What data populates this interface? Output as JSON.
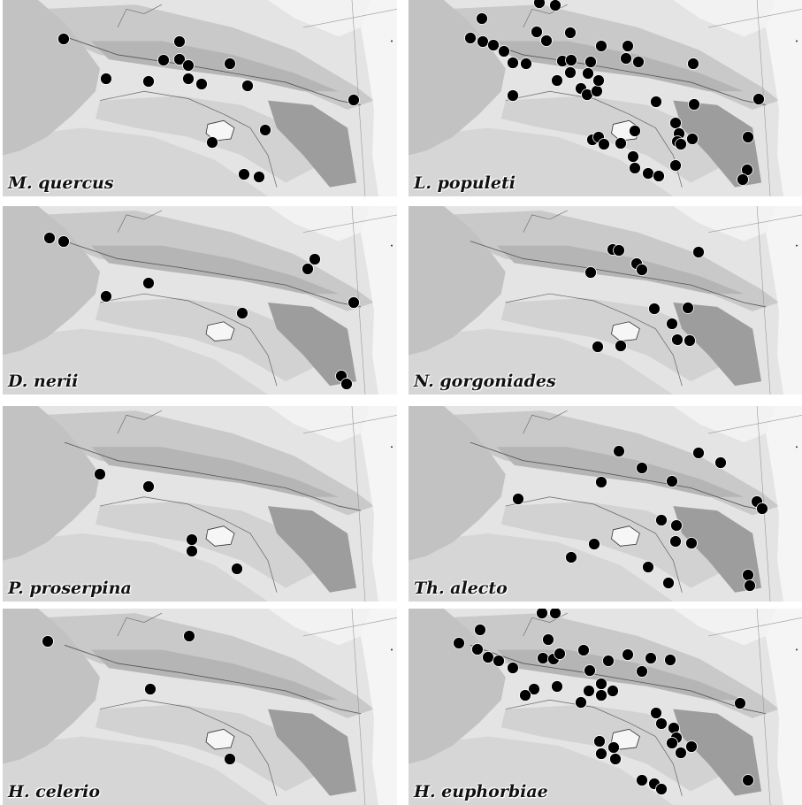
{
  "panels": [
    {
      "label": "M. quercus",
      "points": [
        [
          72,
          44
        ],
        [
          120,
          89
        ],
        [
          168,
          92
        ],
        [
          185,
          68
        ],
        [
          203,
          47
        ],
        [
          203,
          67
        ],
        [
          213,
          74
        ],
        [
          213,
          89
        ],
        [
          228,
          95
        ],
        [
          260,
          72
        ],
        [
          280,
          97
        ],
        [
          300,
          147
        ],
        [
          240,
          161
        ],
        [
          276,
          197
        ],
        [
          293,
          200
        ],
        [
          400,
          113
        ]
      ]
    },
    {
      "label": "L. populeti",
      "points": [
        [
          545,
          21
        ],
        [
          610,
          3
        ],
        [
          628,
          6
        ],
        [
          532,
          43
        ],
        [
          546,
          47
        ],
        [
          558,
          51
        ],
        [
          570,
          58
        ],
        [
          580,
          71
        ],
        [
          595,
          72
        ],
        [
          580,
          108
        ],
        [
          607,
          36
        ],
        [
          618,
          46
        ],
        [
          645,
          37
        ],
        [
          636,
          69
        ],
        [
          646,
          68
        ],
        [
          645,
          82
        ],
        [
          630,
          91
        ],
        [
          668,
          70
        ],
        [
          665,
          83
        ],
        [
          680,
          52
        ],
        [
          710,
          52
        ],
        [
          708,
          66
        ],
        [
          722,
          70
        ],
        [
          657,
          100
        ],
        [
          664,
          107
        ],
        [
          675,
          103
        ],
        [
          677,
          91
        ],
        [
          742,
          115
        ],
        [
          784,
          72
        ],
        [
          785,
          118
        ],
        [
          858,
          112
        ],
        [
          764,
          139
        ],
        [
          768,
          151
        ],
        [
          766,
          160
        ],
        [
          783,
          157
        ],
        [
          770,
          163
        ],
        [
          846,
          155
        ],
        [
          718,
          148
        ],
        [
          670,
          158
        ],
        [
          677,
          155
        ],
        [
          683,
          163
        ],
        [
          702,
          162
        ],
        [
          716,
          177
        ],
        [
          718,
          190
        ],
        [
          733,
          196
        ],
        [
          745,
          199
        ],
        [
          764,
          187
        ],
        [
          845,
          192
        ],
        [
          840,
          203
        ]
      ]
    },
    {
      "label": "D. nerii",
      "points": [
        [
          56,
          269
        ],
        [
          72,
          273
        ],
        [
          120,
          335
        ],
        [
          168,
          320
        ],
        [
          274,
          354
        ],
        [
          356,
          293
        ],
        [
          348,
          304
        ],
        [
          400,
          342
        ],
        [
          386,
          425
        ],
        [
          392,
          434
        ]
      ]
    },
    {
      "label": "N. gorgoniades",
      "points": [
        [
          693,
          282
        ],
        [
          700,
          283
        ],
        [
          720,
          298
        ],
        [
          726,
          305
        ],
        [
          668,
          308
        ],
        [
          790,
          285
        ],
        [
          740,
          349
        ],
        [
          778,
          348
        ],
        [
          760,
          366
        ],
        [
          766,
          384
        ],
        [
          780,
          385
        ],
        [
          676,
          392
        ],
        [
          702,
          391
        ]
      ]
    },
    {
      "label": "P. proserpina",
      "points": [
        [
          113,
          536
        ],
        [
          168,
          550
        ],
        [
          217,
          610
        ],
        [
          217,
          623
        ],
        [
          268,
          643
        ]
      ]
    },
    {
      "label": "Th. alecto",
      "points": [
        [
          700,
          510
        ],
        [
          726,
          529
        ],
        [
          680,
          545
        ],
        [
          760,
          544
        ],
        [
          790,
          512
        ],
        [
          815,
          523
        ],
        [
          586,
          564
        ],
        [
          856,
          567
        ],
        [
          862,
          575
        ],
        [
          748,
          588
        ],
        [
          765,
          594
        ],
        [
          764,
          612
        ],
        [
          782,
          614
        ],
        [
          672,
          615
        ],
        [
          646,
          630
        ],
        [
          733,
          641
        ],
        [
          756,
          659
        ],
        [
          846,
          650
        ],
        [
          848,
          662
        ]
      ]
    },
    {
      "label": "H. celerio",
      "points": [
        [
          54,
          725
        ],
        [
          214,
          719
        ],
        [
          170,
          779
        ],
        [
          260,
          858
        ]
      ]
    },
    {
      "label": "H. euphorbiae",
      "points": [
        [
          613,
          693
        ],
        [
          628,
          693
        ],
        [
          543,
          712
        ],
        [
          519,
          727
        ],
        [
          540,
          734
        ],
        [
          552,
          743
        ],
        [
          564,
          747
        ],
        [
          580,
          755
        ],
        [
          620,
          723
        ],
        [
          614,
          744
        ],
        [
          626,
          745
        ],
        [
          633,
          739
        ],
        [
          660,
          735
        ],
        [
          688,
          747
        ],
        [
          710,
          740
        ],
        [
          736,
          744
        ],
        [
          758,
          746
        ],
        [
          726,
          759
        ],
        [
          667,
          758
        ],
        [
          680,
          773
        ],
        [
          693,
          781
        ],
        [
          666,
          781
        ],
        [
          657,
          794
        ],
        [
          680,
          786
        ],
        [
          604,
          779
        ],
        [
          594,
          786
        ],
        [
          630,
          776
        ],
        [
          837,
          795
        ],
        [
          742,
          806
        ],
        [
          748,
          818
        ],
        [
          762,
          823
        ],
        [
          765,
          834
        ],
        [
          760,
          840
        ],
        [
          782,
          844
        ],
        [
          770,
          851
        ],
        [
          678,
          838
        ],
        [
          680,
          852
        ],
        [
          694,
          845
        ],
        [
          696,
          858
        ],
        [
          726,
          882
        ],
        [
          740,
          886
        ],
        [
          748,
          892
        ],
        [
          846,
          882
        ]
      ]
    }
  ]
}
